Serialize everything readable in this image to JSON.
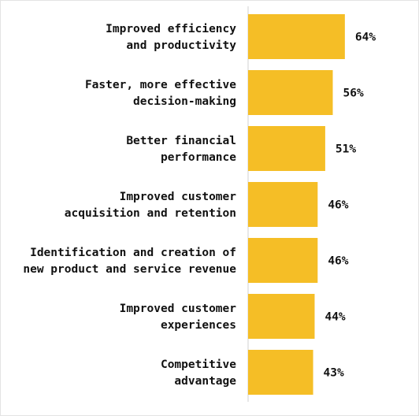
{
  "chart_data": {
    "type": "bar",
    "orientation": "horizontal",
    "categories": [
      [
        "Improved efficiency",
        "and productivity"
      ],
      [
        "Faster, more effective",
        "decision-making"
      ],
      [
        "Better financial",
        "performance"
      ],
      [
        "Improved customer",
        "acquisition and retention"
      ],
      [
        "Identification and creation of",
        "new product and service revenue"
      ],
      [
        "Improved customer",
        "experiences"
      ],
      [
        "Competitive",
        "advantage"
      ]
    ],
    "values": [
      64,
      56,
      51,
      46,
      46,
      44,
      43
    ],
    "value_labels": [
      "64%",
      "56%",
      "51%",
      "46%",
      "46%",
      "44%",
      "43%"
    ],
    "xlim": [
      0,
      100
    ],
    "grid": false,
    "legend": "none"
  },
  "colors": {
    "bar": "#F5BE26",
    "axis": "#d9d9d9",
    "frame": "#e4e4e4",
    "text": "#111111"
  }
}
